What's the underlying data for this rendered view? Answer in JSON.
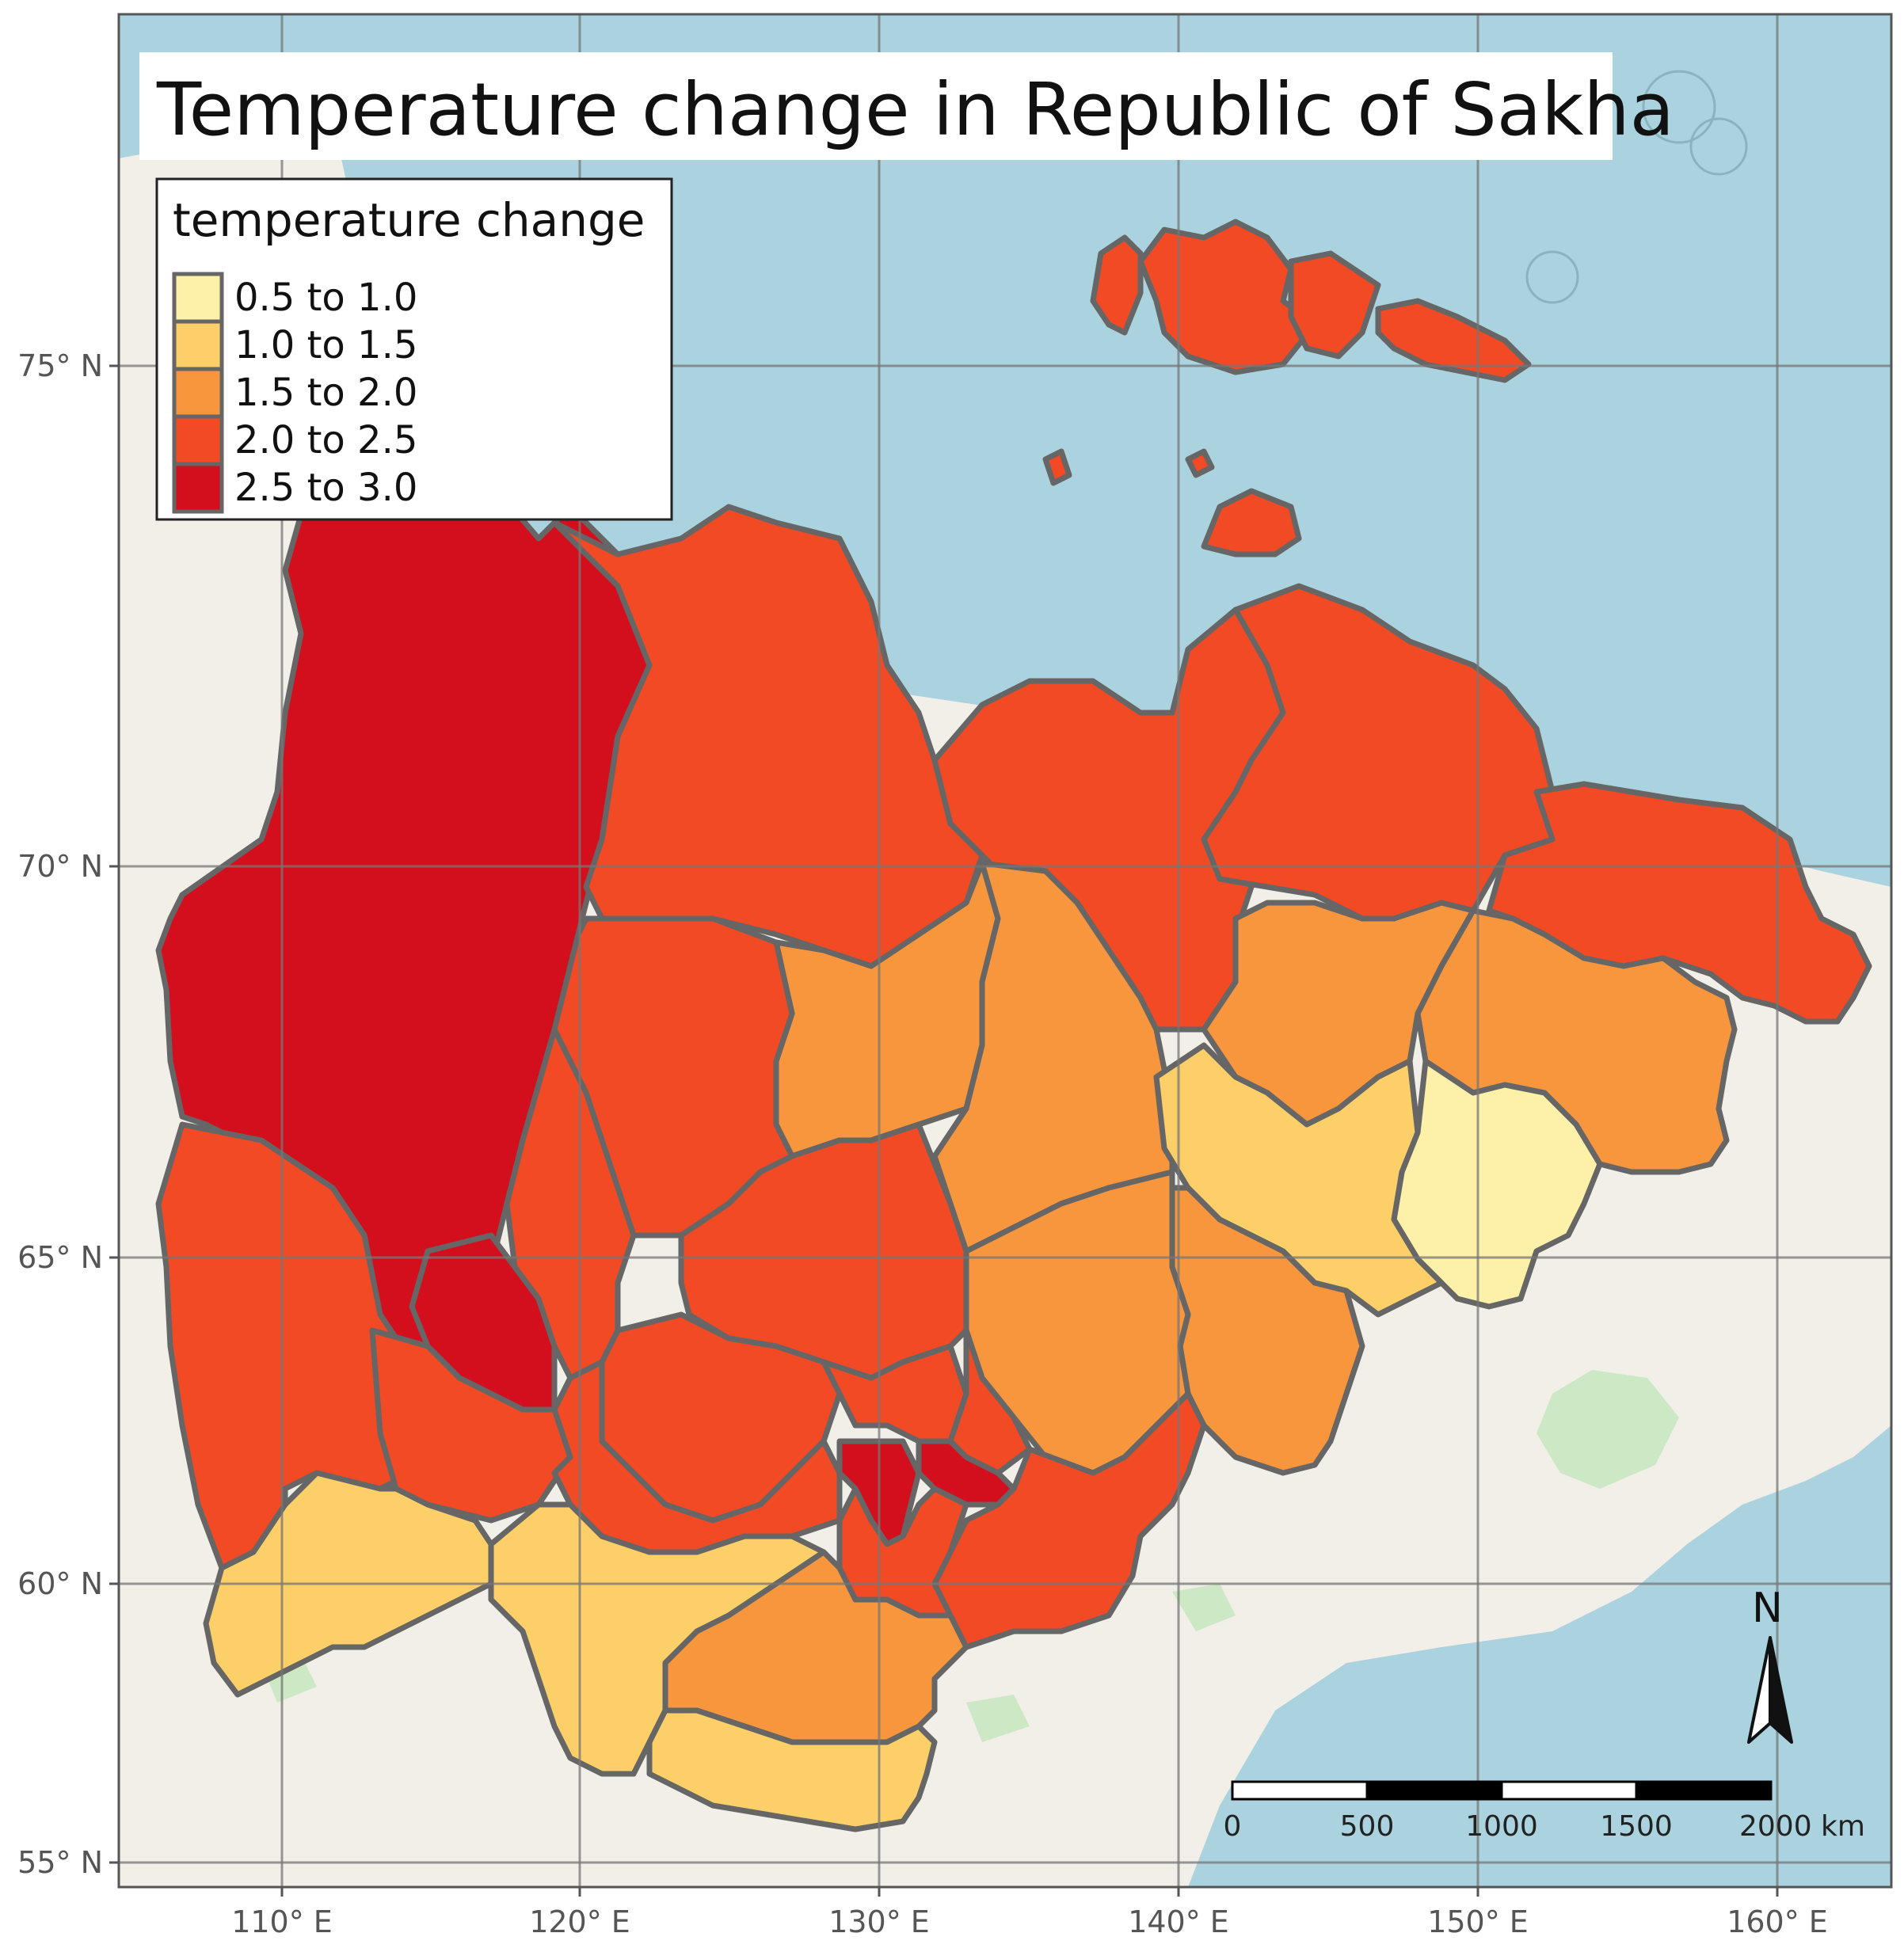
{
  "title": "Temperature change in Republic of Sakha",
  "legend": {
    "title": "temperature change",
    "items": [
      {
        "label": "0.5 to 1.0",
        "color": "#fdf0a8"
      },
      {
        "label": "1.0 to 1.5",
        "color": "#fdcf68"
      },
      {
        "label": "1.5 to 2.0",
        "color": "#f7963d"
      },
      {
        "label": "2.0 to 2.5",
        "color": "#f24a24"
      },
      {
        "label": "2.5 to 3.0",
        "color": "#d30f1e"
      }
    ]
  },
  "axes": {
    "latitude_labels": [
      "75° N",
      "70° N",
      "65° N",
      "60° N",
      "55° N"
    ],
    "longitude_labels": [
      "110° E",
      "120° E",
      "130° E",
      "140° E",
      "150° E",
      "160° E"
    ]
  },
  "scale_bar": {
    "labels": [
      "0",
      "500",
      "1000",
      "1500",
      "2000 km"
    ]
  },
  "north_arrow": {
    "label": "N"
  },
  "colors": {
    "water": "#aad3df",
    "land": "#f2efe9",
    "border": "#666666",
    "grid": "#777777"
  }
}
